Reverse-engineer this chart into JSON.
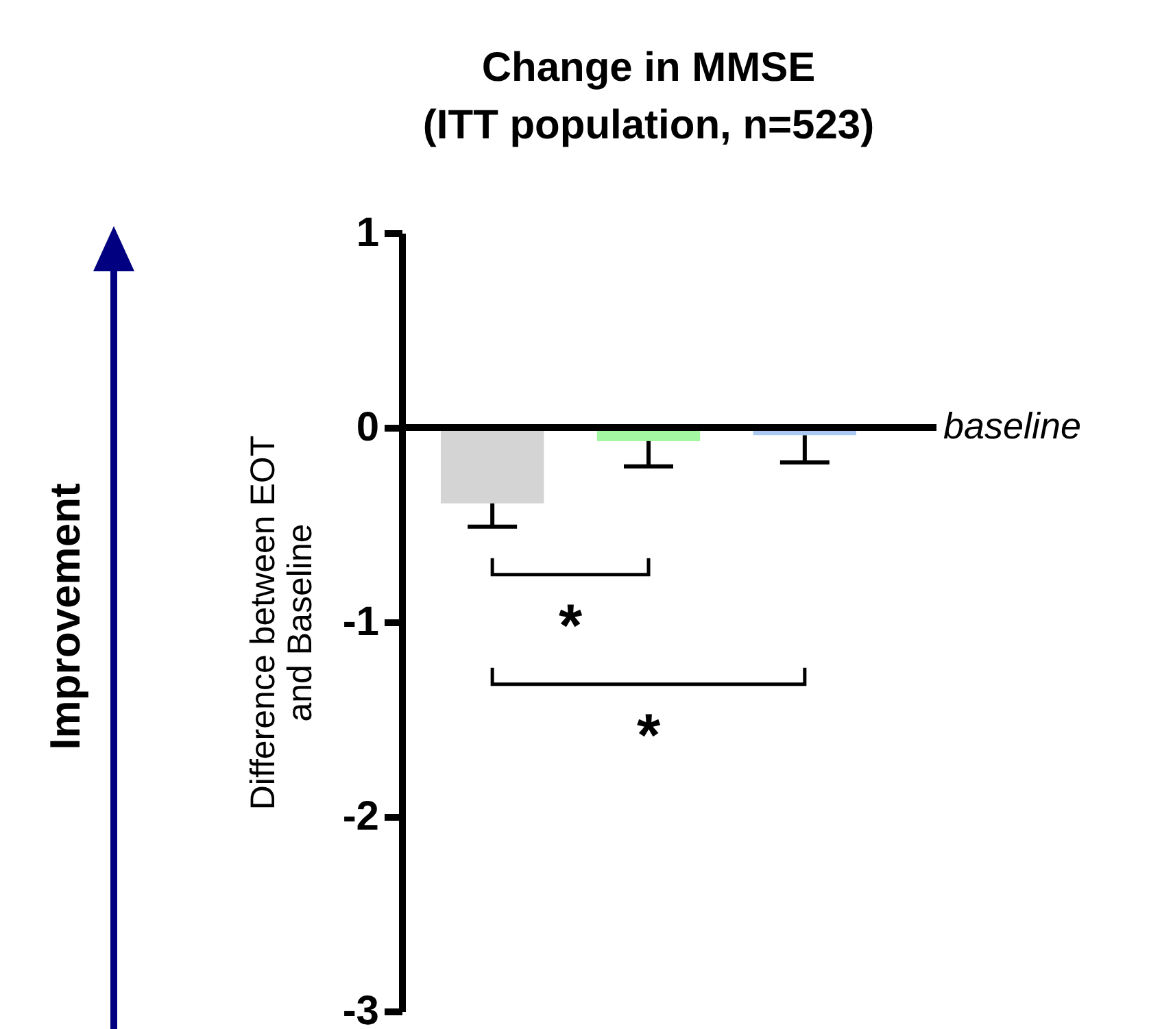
{
  "chart_data": {
    "type": "bar",
    "title": "Change in MMSE",
    "subtitle": "(ITT population, n=523)",
    "ylabel": "Difference between EOT and Baseline",
    "categories": [
      null,
      null,
      null
    ],
    "values": [
      -0.39,
      -0.07,
      -0.04
    ],
    "colors": [
      "#d4d4d4",
      "#a3f7a3",
      "#a9c9f3"
    ],
    "errors": [
      [
        -0.51,
        -0.39
      ],
      [
        -0.2,
        -0.07
      ],
      [
        -0.18,
        -0.04
      ]
    ],
    "ylim": [
      -3,
      1
    ],
    "yticks": [
      -3,
      -2,
      -1,
      0,
      1
    ],
    "tick_labels": "y",
    "ref_lines": [
      {
        "axis": "y",
        "value": 0,
        "label": "baseline"
      }
    ],
    "annotations": [
      "*",
      "*",
      "Improvement"
    ]
  }
}
